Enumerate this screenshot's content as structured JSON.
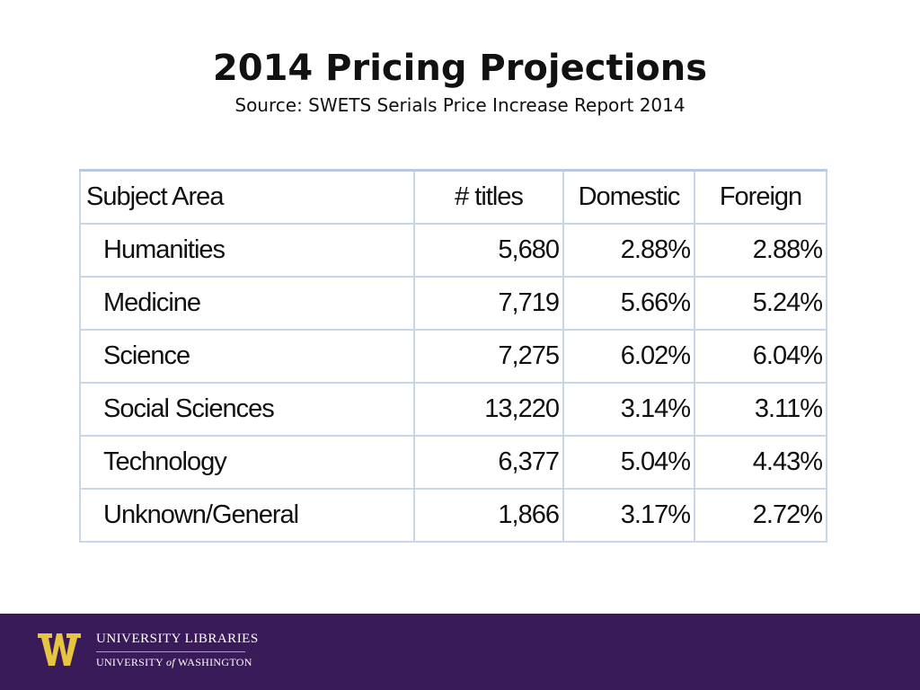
{
  "slide": {
    "title": "2014 Pricing Projections",
    "subtitle": "Source: SWETS Serials Price Increase Report 2014"
  },
  "table": {
    "headers": [
      "Subject Area",
      "# titles",
      "Domestic",
      "Foreign"
    ],
    "rows": [
      {
        "subject": "Humanities",
        "titles": "5,680",
        "domestic": "2.88%",
        "foreign": "2.88%"
      },
      {
        "subject": "Medicine",
        "titles": "7,719",
        "domestic": "5.66%",
        "foreign": "5.24%"
      },
      {
        "subject": "Science",
        "titles": "7,275",
        "domestic": "6.02%",
        "foreign": "6.04%"
      },
      {
        "subject": "Social Sciences",
        "titles": "13,220",
        "domestic": "3.14%",
        "foreign": "3.11%"
      },
      {
        "subject": "Technology",
        "titles": "6,377",
        "domestic": "5.04%",
        "foreign": "4.43%"
      },
      {
        "subject": "Unknown/General",
        "titles": "1,866",
        "domestic": "3.17%",
        "foreign": "2.72%"
      }
    ]
  },
  "footer": {
    "logo_icon": "uw-w-logo-icon",
    "line1": "UNIVERSITY LIBRARIES",
    "line2_a": "UNIVERSITY",
    "line2_of": "of",
    "line2_b": "WASHINGTON",
    "colors": {
      "background": "#3a1b5a",
      "logo_gold": "#e8c540",
      "divider": "#b7a57a"
    }
  }
}
